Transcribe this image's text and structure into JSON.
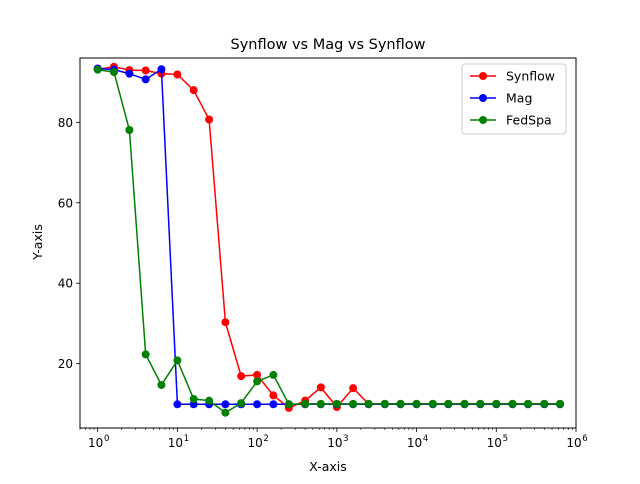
{
  "chart_data": {
    "type": "line",
    "title": "Synflow vs Mag vs Synflow",
    "xlabel": "X-axis",
    "ylabel": "Y-axis",
    "xscale": "log",
    "xlim": [
      0.6,
      1000000
    ],
    "ylim": [
      4,
      96
    ],
    "xticks": [
      {
        "value": 1,
        "base": "10",
        "exp": "0"
      },
      {
        "value": 10,
        "base": "10",
        "exp": "1"
      },
      {
        "value": 100,
        "base": "10",
        "exp": "2"
      },
      {
        "value": 1000,
        "base": "10",
        "exp": "3"
      },
      {
        "value": 10000,
        "base": "10",
        "exp": "4"
      },
      {
        "value": 100000,
        "base": "10",
        "exp": "5"
      },
      {
        "value": 1000000,
        "base": "10",
        "exp": "6"
      }
    ],
    "yticks": [
      {
        "value": 20,
        "label": "20"
      },
      {
        "value": 40,
        "label": "40"
      },
      {
        "value": 60,
        "label": "60"
      },
      {
        "value": 80,
        "label": "80"
      }
    ],
    "grid": false,
    "legend_position": "top-right",
    "x": [
      1,
      1.6,
      2.5,
      4,
      6.3,
      10,
      16,
      25,
      40,
      63,
      100,
      160,
      250,
      400,
      630,
      1000,
      1600,
      2500,
      4000,
      6300,
      10000,
      16000,
      25000,
      40000,
      63000,
      100000,
      160000,
      250000,
      400000,
      630000
    ],
    "series": [
      {
        "name": "Synflow",
        "color": "#ff0000",
        "values": [
          93.2,
          93.8,
          93.0,
          92.9,
          92.1,
          91.9,
          88.0,
          80.7,
          30.3,
          16.9,
          17.2,
          12.1,
          9.0,
          10.8,
          14.1,
          9.2,
          13.9,
          10.0,
          10.0,
          10.0,
          10.0,
          10.0,
          10.0,
          10.0,
          10.0,
          10.0,
          10.0,
          10.0,
          10.0,
          10.0
        ]
      },
      {
        "name": "Mag",
        "color": "#0000ff",
        "values": [
          93.4,
          93.1,
          92.1,
          90.7,
          93.2,
          9.9,
          9.9,
          9.9,
          9.9,
          9.9,
          9.9,
          9.9,
          9.9,
          9.9,
          9.9,
          9.9,
          9.9,
          9.9,
          9.9,
          9.9,
          9.9,
          9.9,
          9.9,
          9.9,
          9.9,
          9.9,
          9.9,
          9.9,
          9.9,
          9.9
        ]
      },
      {
        "name": "FedSpa",
        "color": "#008000",
        "values": [
          93.1,
          92.5,
          78.1,
          22.3,
          14.7,
          20.8,
          11.2,
          10.8,
          7.8,
          10.2,
          15.6,
          17.2,
          9.9,
          10.0,
          10.0,
          10.0,
          10.0,
          10.0,
          10.0,
          10.0,
          10.0,
          10.0,
          10.0,
          10.0,
          10.0,
          10.0,
          10.0,
          10.0,
          10.0,
          10.0
        ]
      }
    ]
  }
}
